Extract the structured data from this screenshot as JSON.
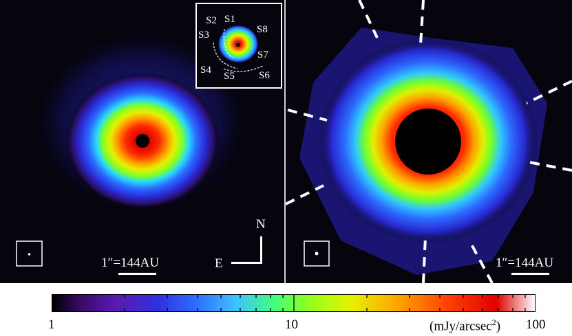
{
  "left_panel": {
    "scale_label": "1″=144AU",
    "compass": {
      "north": "N",
      "east": "E"
    },
    "inset_labels": [
      "S1",
      "S2",
      "S3",
      "S4",
      "S5",
      "S6",
      "S7",
      "S8"
    ],
    "icons": [
      "beam-psf-icon",
      "compass-icon",
      "coronagraph-mask-icon"
    ]
  },
  "right_panel": {
    "scale_label": "1″=144AU",
    "icons": [
      "beam-psf-icon",
      "coronagraph-mask-icon"
    ]
  },
  "colorbar": {
    "tick_min": "1",
    "tick_mid": "10",
    "tick_max": "100",
    "unit": "(mJy/arcsec",
    "unit_sup": "2",
    "unit_close": ")",
    "colors": [
      "#000000",
      "#3a0a6a",
      "#5a1ab0",
      "#3030e0",
      "#2f6fff",
      "#40c0ff",
      "#40ff80",
      "#90ff20",
      "#e8f000",
      "#ffa000",
      "#ff4000",
      "#e00000",
      "#ffffff"
    ]
  }
}
